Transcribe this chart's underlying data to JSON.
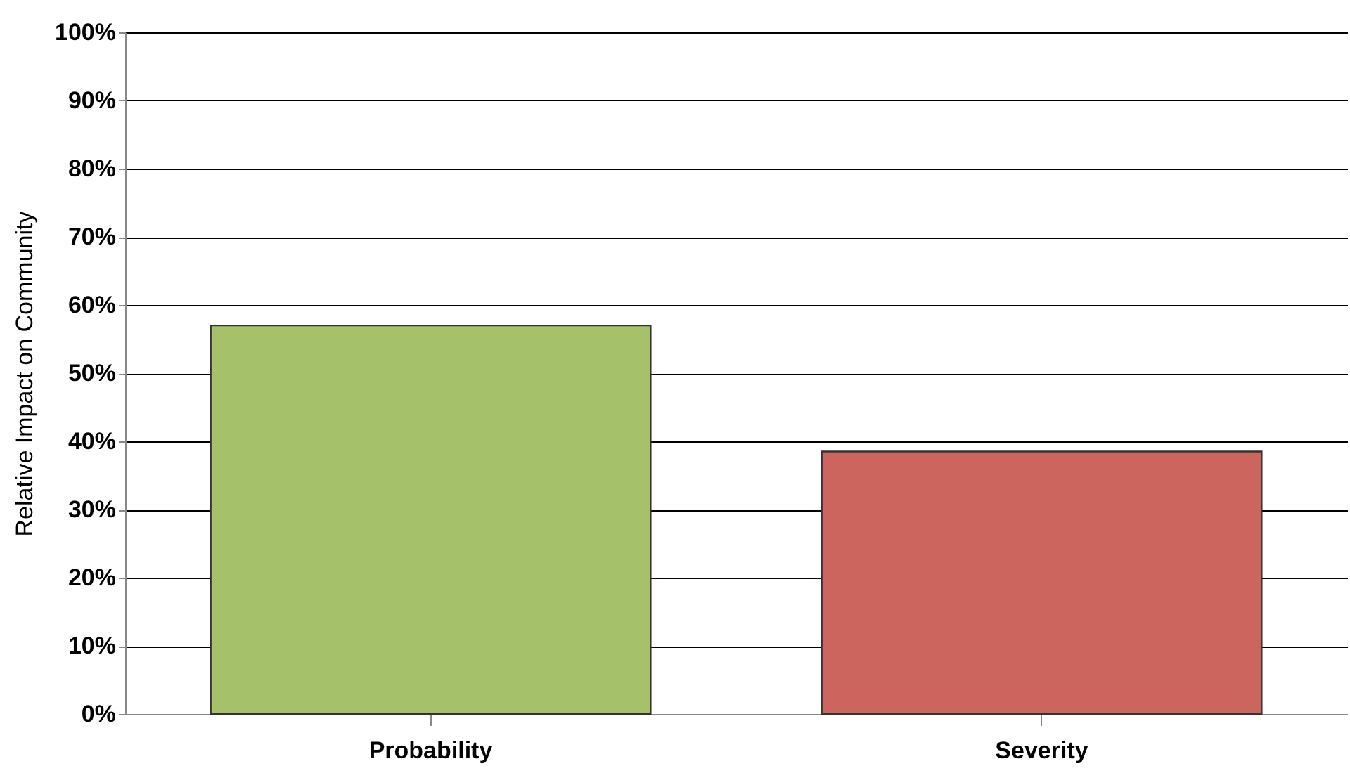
{
  "chart_data": {
    "type": "bar",
    "ylabel": "Relative Impact on Community",
    "categories": [
      "Probability",
      "Severity"
    ],
    "values": [
      57,
      38.5
    ],
    "colors": [
      "#a5c26b",
      "#cc655e"
    ],
    "ylim": [
      0,
      100
    ],
    "yticks": [
      {
        "value": 0,
        "label": "0%"
      },
      {
        "value": 10,
        "label": "10%"
      },
      {
        "value": 20,
        "label": "20%"
      },
      {
        "value": 30,
        "label": "30%"
      },
      {
        "value": 40,
        "label": "40%"
      },
      {
        "value": 50,
        "label": "50%"
      },
      {
        "value": 60,
        "label": "60%"
      },
      {
        "value": 70,
        "label": "70%"
      },
      {
        "value": 80,
        "label": "80%"
      },
      {
        "value": 90,
        "label": "90%"
      },
      {
        "value": 100,
        "label": "100%"
      }
    ],
    "grid": "y"
  }
}
